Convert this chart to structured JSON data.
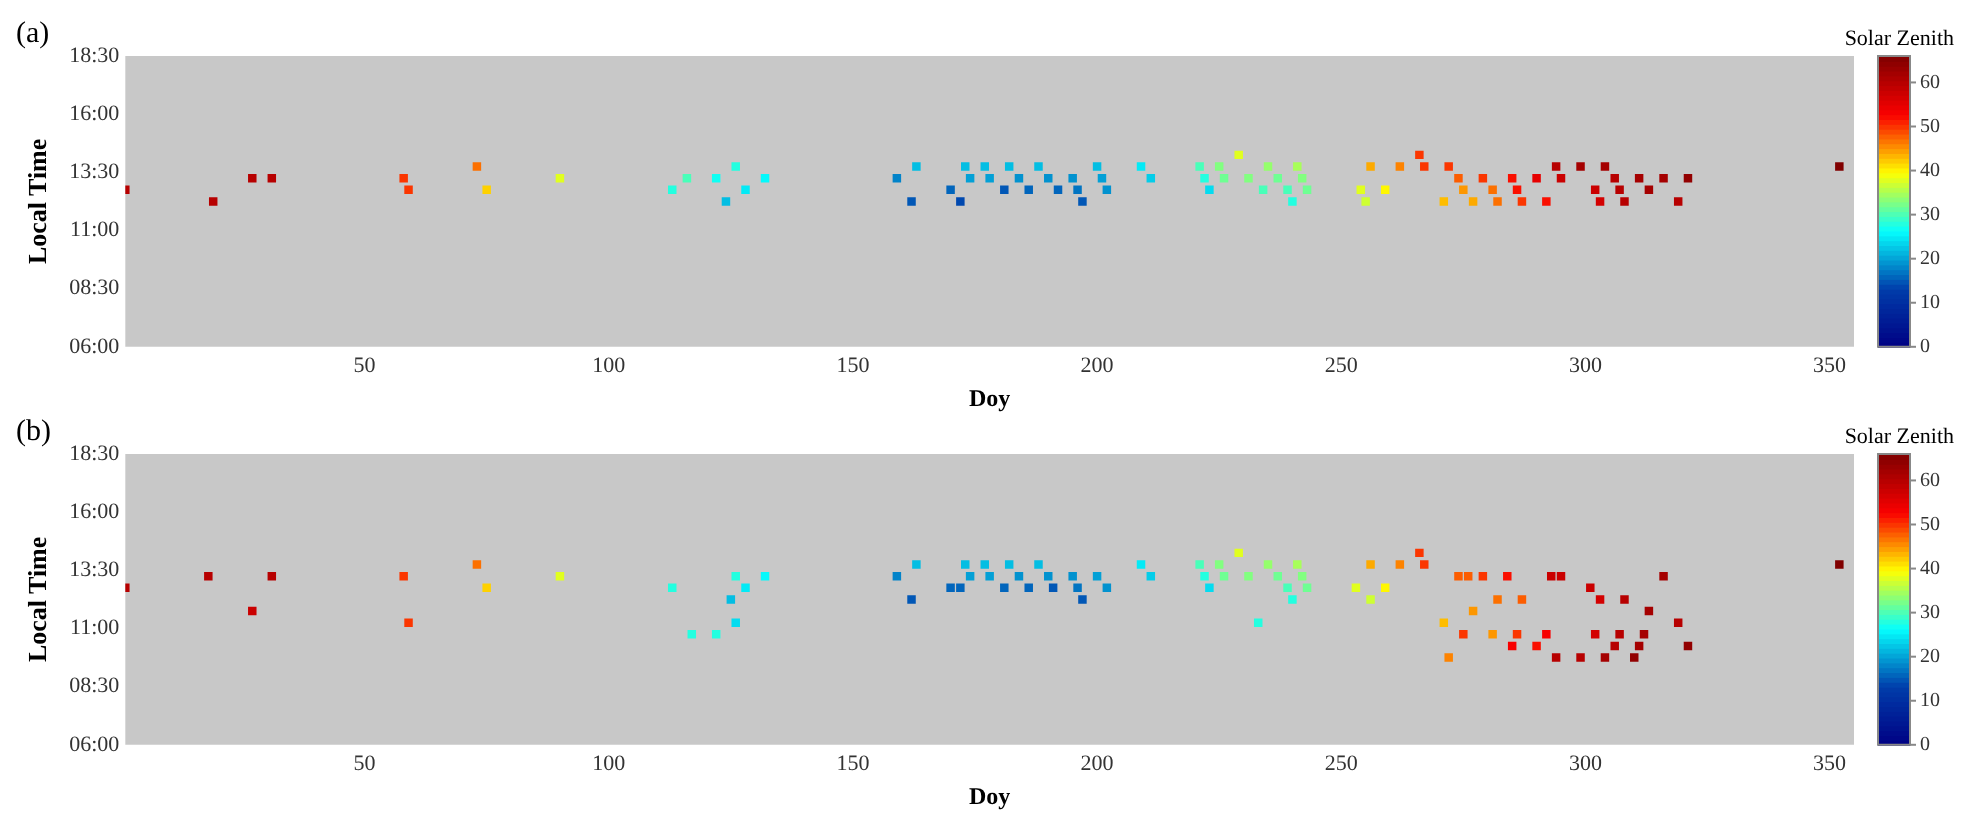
{
  "chart_data": [
    {
      "type": "scatter",
      "title": "(a)",
      "xlabel": "Doy",
      "ylabel": "Local Time",
      "clabel": "Solar Zenith",
      "marker": "square",
      "xlim": [
        1,
        355
      ],
      "xticks": [
        50,
        100,
        150,
        200,
        250,
        300,
        350
      ],
      "ylim": [
        6,
        18.5
      ],
      "yticks": [
        {
          "value": 6,
          "label": "06:00"
        },
        {
          "value": 8.5,
          "label": "08:30"
        },
        {
          "value": 11,
          "label": "11:00"
        },
        {
          "value": 13.5,
          "label": "13:30"
        },
        {
          "value": 16,
          "label": "16:00"
        },
        {
          "value": 18.5,
          "label": "18:30"
        }
      ],
      "clim": [
        0,
        66
      ],
      "cticks": [
        0,
        10,
        20,
        30,
        40,
        50,
        60
      ],
      "x": [
        1,
        19,
        27,
        31,
        58,
        59,
        73,
        75,
        90,
        113,
        116,
        122,
        124,
        126,
        128,
        132,
        159,
        162,
        163,
        170,
        172,
        173,
        174,
        177,
        178,
        181,
        182,
        184,
        186,
        188,
        190,
        192,
        195,
        196,
        197,
        200,
        201,
        202,
        209,
        211,
        221,
        222,
        223,
        225,
        226,
        229,
        231,
        234,
        235,
        237,
        239,
        240,
        241,
        242,
        243,
        254,
        255,
        256,
        259,
        262,
        266,
        267,
        271,
        272,
        274,
        275,
        277,
        279,
        281,
        282,
        285,
        286,
        287,
        290,
        292,
        294,
        295,
        299,
        302,
        303,
        304,
        306,
        307,
        308,
        311,
        313,
        316,
        319,
        321,
        352
      ],
      "values": [
        12.75,
        12.25,
        13.25,
        13.25,
        13.25,
        12.75,
        13.75,
        12.75,
        13.25,
        12.75,
        13.25,
        13.25,
        12.25,
        13.75,
        12.75,
        13.25,
        13.25,
        12.25,
        13.75,
        12.75,
        12.25,
        13.75,
        13.25,
        13.75,
        13.25,
        12.75,
        13.75,
        13.25,
        12.75,
        13.75,
        13.25,
        12.75,
        13.25,
        12.75,
        12.25,
        13.75,
        13.25,
        12.75,
        13.75,
        13.25,
        13.75,
        13.25,
        12.75,
        13.75,
        13.25,
        14.25,
        13.25,
        12.75,
        13.75,
        13.25,
        12.75,
        12.25,
        13.75,
        13.25,
        12.75,
        12.75,
        12.25,
        13.75,
        12.75,
        13.75,
        14.25,
        13.75,
        12.25,
        13.75,
        13.25,
        12.75,
        12.25,
        13.25,
        12.75,
        12.25,
        13.25,
        12.75,
        12.25,
        13.25,
        12.25,
        13.75,
        13.25,
        13.75,
        12.75,
        12.25,
        13.75,
        13.25,
        12.75,
        12.25,
        13.25,
        12.75,
        13.25,
        12.25,
        13.25,
        13.75
      ],
      "cvalues": [
        60,
        60,
        60,
        60,
        50,
        50,
        47,
        42,
        38,
        28,
        30,
        27,
        22,
        28,
        25,
        26,
        18,
        15,
        22,
        16,
        14,
        22,
        20,
        22,
        20,
        15,
        22,
        19,
        16,
        22,
        19,
        16,
        19,
        17,
        15,
        22,
        20,
        19,
        25,
        23,
        30,
        28,
        24,
        33,
        32,
        38,
        33,
        30,
        34,
        32,
        30,
        28,
        35,
        33,
        32,
        38,
        37,
        44,
        40,
        46,
        50,
        50,
        43,
        50,
        48,
        45,
        44,
        50,
        47,
        47,
        52,
        52,
        50,
        55,
        52,
        60,
        58,
        62,
        58,
        57,
        62,
        60,
        60,
        60,
        62,
        62,
        62,
        60,
        64,
        66
      ]
    },
    {
      "type": "scatter",
      "title": "(b)",
      "xlabel": "Doy",
      "ylabel": "Local Time",
      "clabel": "Solar Zenith",
      "marker": "square",
      "xlim": [
        1,
        355
      ],
      "xticks": [
        50,
        100,
        150,
        200,
        250,
        300,
        350
      ],
      "ylim": [
        6,
        18.5
      ],
      "yticks": [
        {
          "value": 6,
          "label": "06:00"
        },
        {
          "value": 8.5,
          "label": "08:30"
        },
        {
          "value": 11,
          "label": "11:00"
        },
        {
          "value": 13.5,
          "label": "13:30"
        },
        {
          "value": 16,
          "label": "16:00"
        },
        {
          "value": 18.5,
          "label": "18:30"
        }
      ],
      "clim": [
        0,
        66
      ],
      "cticks": [
        0,
        10,
        20,
        30,
        40,
        50,
        60
      ],
      "x": [
        1,
        18,
        27,
        31,
        58,
        59,
        73,
        75,
        90,
        113,
        117,
        122,
        125,
        126,
        126,
        128,
        132,
        159,
        162,
        163,
        170,
        172,
        173,
        174,
        177,
        178,
        181,
        182,
        184,
        186,
        188,
        190,
        191,
        195,
        196,
        197,
        200,
        202,
        209,
        211,
        221,
        222,
        223,
        225,
        226,
        229,
        231,
        233,
        235,
        237,
        239,
        240,
        241,
        242,
        243,
        253,
        256,
        256,
        259,
        262,
        266,
        267,
        271,
        272,
        274,
        275,
        276,
        277,
        279,
        281,
        282,
        284,
        285,
        286,
        287,
        290,
        292,
        293,
        294,
        295,
        299,
        301,
        302,
        303,
        304,
        306,
        307,
        308,
        310,
        311,
        312,
        313,
        316,
        319,
        321,
        352
      ],
      "values": [
        12.75,
        13.25,
        11.75,
        13.25,
        13.25,
        11.25,
        13.75,
        12.75,
        13.25,
        12.75,
        10.75,
        10.75,
        12.25,
        13.25,
        11.25,
        12.75,
        13.25,
        13.25,
        12.25,
        13.75,
        12.75,
        12.75,
        13.75,
        13.25,
        13.75,
        13.25,
        12.75,
        13.75,
        13.25,
        12.75,
        13.75,
        13.25,
        12.75,
        13.25,
        12.75,
        12.25,
        13.25,
        12.75,
        13.75,
        13.25,
        13.75,
        13.25,
        12.75,
        13.75,
        13.25,
        14.25,
        13.25,
        11.25,
        13.75,
        13.25,
        12.75,
        12.25,
        13.75,
        13.25,
        12.75,
        12.75,
        13.75,
        12.25,
        12.75,
        13.75,
        14.25,
        13.75,
        11.25,
        9.75,
        13.25,
        10.75,
        13.25,
        11.75,
        13.25,
        10.75,
        12.25,
        13.25,
        10.25,
        10.75,
        12.25,
        10.25,
        10.75,
        13.25,
        9.75,
        13.25,
        9.75,
        12.75,
        10.75,
        12.25,
        9.75,
        10.25,
        10.75,
        12.25,
        9.75,
        10.25,
        10.75,
        11.75,
        13.25,
        11.25,
        10.25,
        13.75
      ],
      "cvalues": [
        60,
        60,
        58,
        60,
        50,
        50,
        47,
        42,
        38,
        28,
        28,
        28,
        22,
        28,
        24,
        25,
        26,
        18,
        15,
        22,
        16,
        16,
        22,
        20,
        22,
        20,
        16,
        22,
        19,
        16,
        22,
        19,
        15,
        19,
        17,
        15,
        20,
        19,
        25,
        23,
        30,
        28,
        24,
        33,
        32,
        38,
        33,
        28,
        34,
        32,
        30,
        28,
        35,
        33,
        32,
        38,
        44,
        37,
        40,
        46,
        50,
        50,
        43,
        46,
        48,
        50,
        48,
        45,
        50,
        45,
        47,
        52,
        53,
        50,
        48,
        52,
        53,
        58,
        60,
        58,
        60,
        58,
        57,
        57,
        62,
        60,
        60,
        60,
        64,
        62,
        62,
        62,
        62,
        60,
        64,
        66
      ]
    }
  ]
}
